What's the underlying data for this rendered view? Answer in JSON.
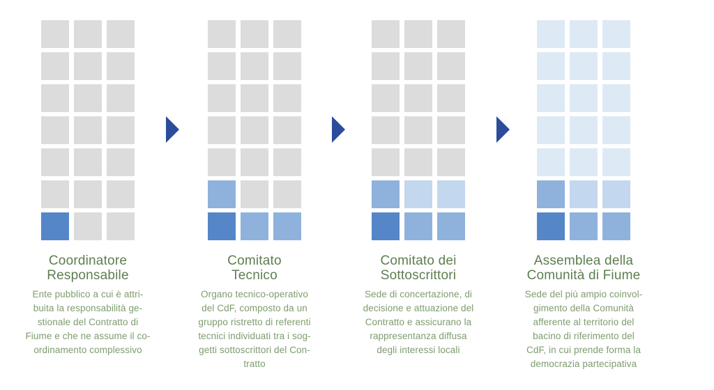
{
  "palette": {
    "gray": "#dcdcdc",
    "dark_blue": "#5587c8",
    "mid_blue": "#8fb2dd",
    "light_blue": "#c3d7ee",
    "pale_blue": "#dde9f5",
    "arrow_blue": "#2b4c9b",
    "title_green": "#5e7e4f",
    "body_green": "#7d9c6e",
    "background": "#ffffff"
  },
  "grid_config": {
    "columns": 3,
    "rows": 7
  },
  "sections": [
    {
      "id": "coordinatore-responsabile",
      "title": "Coordinatore\nResponsabile",
      "description": "Ente pubblico a cui è attri-\nbuita la responsabilità ge-\nstionale del Contratto di\nFiume e che ne assume il co-\nordinamento complessivo",
      "cells": [
        "gray",
        "gray",
        "gray",
        "gray",
        "gray",
        "gray",
        "gray",
        "gray",
        "gray",
        "gray",
        "gray",
        "gray",
        "gray",
        "gray",
        "gray",
        "gray",
        "gray",
        "gray",
        "dark_blue",
        "gray",
        "gray"
      ]
    },
    {
      "id": "comitato-tecnico",
      "title": "Comitato\nTecnico",
      "description": "Organo tecnico-operativo\ndel CdF, composto da un\ngruppo ristretto di referenti\ntecnici individuati tra i sog-\ngetti sottoscrittori del Con-\ntratto",
      "cells": [
        "gray",
        "gray",
        "gray",
        "gray",
        "gray",
        "gray",
        "gray",
        "gray",
        "gray",
        "gray",
        "gray",
        "gray",
        "gray",
        "gray",
        "gray",
        "mid_blue",
        "gray",
        "gray",
        "dark_blue",
        "mid_blue",
        "mid_blue"
      ]
    },
    {
      "id": "comitato-dei-sottoscrittori",
      "title": "Comitato dei\nSottoscrittori",
      "description": "Sede di concertazione, di\ndecisione e attuazione del\nContratto e assicurano la\nrappresentanza diffusa\ndegli interessi locali",
      "cells": [
        "gray",
        "gray",
        "gray",
        "gray",
        "gray",
        "gray",
        "gray",
        "gray",
        "gray",
        "gray",
        "gray",
        "gray",
        "gray",
        "gray",
        "gray",
        "mid_blue",
        "light_blue",
        "light_blue",
        "dark_blue",
        "mid_blue",
        "mid_blue"
      ]
    },
    {
      "id": "assemblea-della-comunita-di-fiume",
      "title": "Assemblea della\nComunità di Fiume",
      "description": "Sede del più ampio coinvol-\ngimento della Comunità\nafferente al territorio del\nbacino di riferimento del\nCdF, in cui prende forma la\ndemocrazia partecipativa",
      "cells": [
        "pale_blue",
        "pale_blue",
        "pale_blue",
        "pale_blue",
        "pale_blue",
        "pale_blue",
        "pale_blue",
        "pale_blue",
        "pale_blue",
        "pale_blue",
        "pale_blue",
        "pale_blue",
        "pale_blue",
        "pale_blue",
        "pale_blue",
        "mid_blue",
        "light_blue",
        "light_blue",
        "dark_blue",
        "mid_blue",
        "mid_blue"
      ]
    }
  ],
  "arrows": [
    {
      "id": "arrow-1"
    },
    {
      "id": "arrow-2"
    },
    {
      "id": "arrow-3"
    }
  ]
}
